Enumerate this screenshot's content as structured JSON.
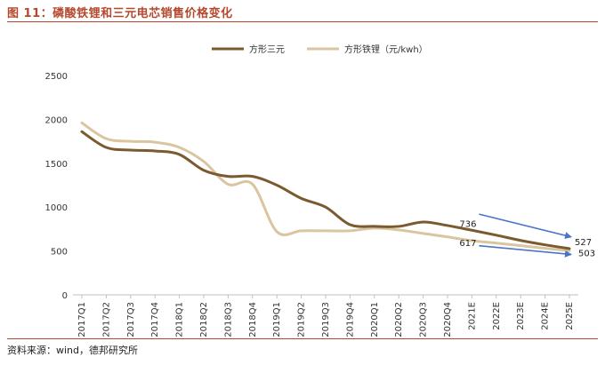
{
  "header": {
    "title": "图 11：磷酸铁锂和三元电芯销售价格变化"
  },
  "footer": {
    "source": "资料来源：wind，德邦研究所"
  },
  "chart_data": {
    "type": "line",
    "categories": [
      "2017Q1",
      "2017Q2",
      "2017Q3",
      "2017Q4",
      "2018Q1",
      "2018Q2",
      "2018Q3",
      "2018Q4",
      "2019Q1",
      "2019Q2",
      "2019Q3",
      "2019Q4",
      "2020Q1",
      "2020Q2",
      "2020Q3",
      "2020Q4",
      "2021E",
      "2022E",
      "2023E",
      "2024E",
      "2025E"
    ],
    "ylim": [
      0,
      2500
    ],
    "yticks": [
      "0",
      "500",
      "1000",
      "1500",
      "2000",
      "2500"
    ],
    "series": [
      {
        "name": "方形三元",
        "color": "#7a5a2e",
        "values": [
          1860,
          1680,
          1650,
          1640,
          1600,
          1420,
          1350,
          1350,
          1250,
          1100,
          1000,
          800,
          780,
          780,
          830,
          790,
          736,
          680,
          620,
          570,
          527
        ]
      },
      {
        "name": "方形铁锂（元/kwh）",
        "color": "#d9c6a0",
        "values": [
          1960,
          1780,
          1750,
          1740,
          1680,
          1520,
          1260,
          1260,
          720,
          730,
          730,
          730,
          760,
          740,
          700,
          660,
          617,
          590,
          560,
          530,
          503
        ]
      }
    ],
    "annotations": [
      {
        "text": "736",
        "x": "2021E",
        "y": 736
      },
      {
        "text": "617",
        "x": "2021E",
        "y": 617
      },
      {
        "text": "527",
        "x": "2025E",
        "y": 527
      },
      {
        "text": "503",
        "x": "2025E",
        "y": 503
      }
    ],
    "arrow_color": "#4a74c9",
    "legend_position": "top"
  }
}
